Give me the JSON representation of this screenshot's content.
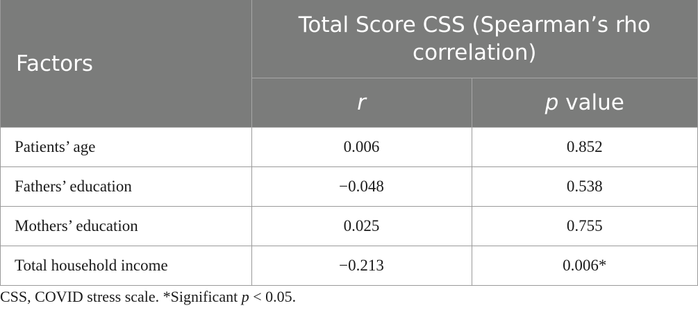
{
  "table": {
    "header": {
      "factors": "Factors",
      "group": "Total Score CSS (Spearman’s rho correlation)",
      "sub": {
        "r": "r",
        "p_italic": "p",
        "p_rest": " value"
      }
    },
    "rows": [
      {
        "factor": "Patients’ age",
        "r": "0.006",
        "p": "0.852"
      },
      {
        "factor": "Fathers’ education",
        "r": "−0.048",
        "p": "0.538"
      },
      {
        "factor": "Mothers’ education",
        "r": "0.025",
        "p": "0.755"
      },
      {
        "factor": "Total household income",
        "r": "−0.213",
        "p": "0.006*"
      }
    ]
  },
  "footnote": {
    "text_before": "CSS, COVID stress scale. *Significant ",
    "p_italic": "p",
    "text_after": " < 0.05."
  },
  "colors": {
    "header_bg": "#7b7c7b",
    "header_text": "#ffffff",
    "border": "#9a9a9a"
  }
}
